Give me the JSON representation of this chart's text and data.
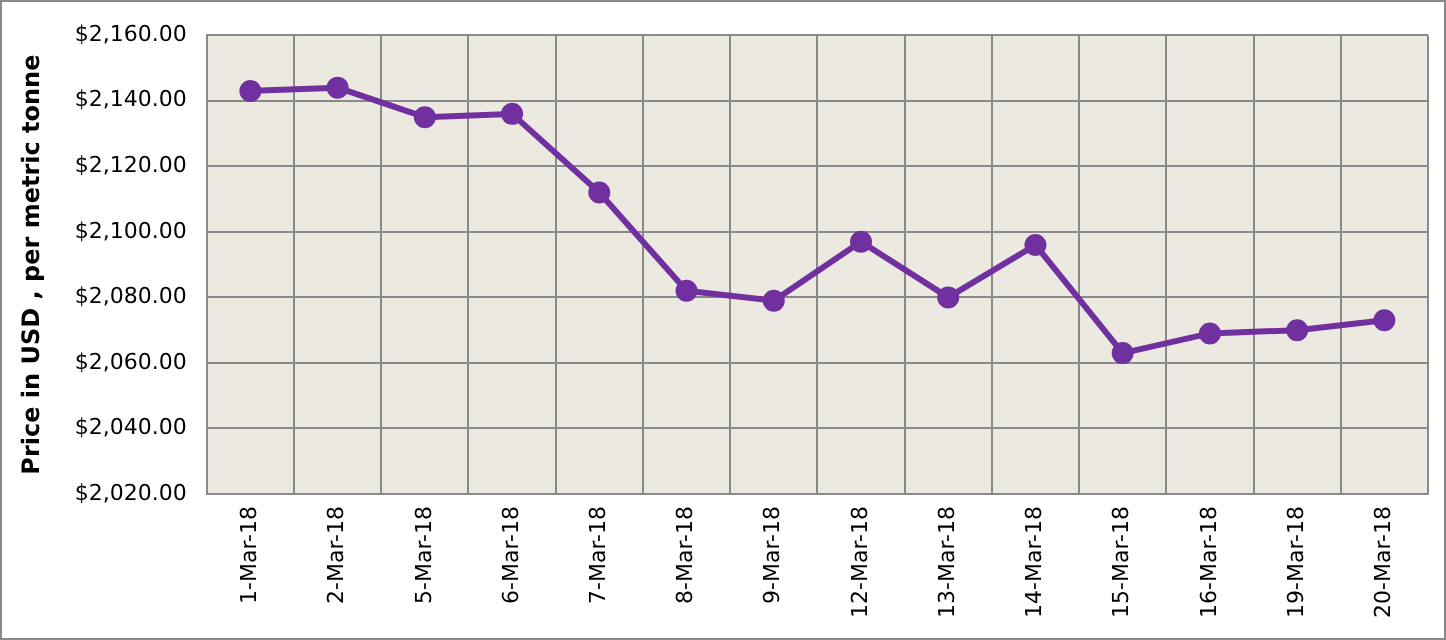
{
  "chart_data": {
    "type": "line",
    "ylabel": "Price in USD , per metric tonne",
    "categories": [
      "1-Mar-18",
      "2-Mar-18",
      "5-Mar-18",
      "6-Mar-18",
      "7-Mar-18",
      "8-Mar-18",
      "9-Mar-18",
      "12-Mar-18",
      "13-Mar-18",
      "14-Mar-18",
      "15-Mar-18",
      "16-Mar-18",
      "19-Mar-18",
      "20-Mar-18"
    ],
    "series": [
      {
        "color": "#7030a0",
        "values": [
          2143,
          2144,
          2135,
          2136,
          2112,
          2082,
          2079,
          2097,
          2080,
          2096,
          2063,
          2069,
          2070,
          2073
        ]
      }
    ],
    "ylim": [
      2020,
      2160
    ],
    "yticks": [
      {
        "value": 2020,
        "label": "$2,020.00"
      },
      {
        "value": 2040,
        "label": "$2,040.00"
      },
      {
        "value": 2060,
        "label": "$2,060.00"
      },
      {
        "value": 2080,
        "label": "$2,080.00"
      },
      {
        "value": 2100,
        "label": "$2,100.00"
      },
      {
        "value": 2120,
        "label": "$2,120.00"
      },
      {
        "value": 2140,
        "label": "$2,140.00"
      },
      {
        "value": 2160,
        "label": "$2,160.00"
      }
    ],
    "grid": true,
    "marker": "circle",
    "line_style": "solid",
    "legend": false
  }
}
